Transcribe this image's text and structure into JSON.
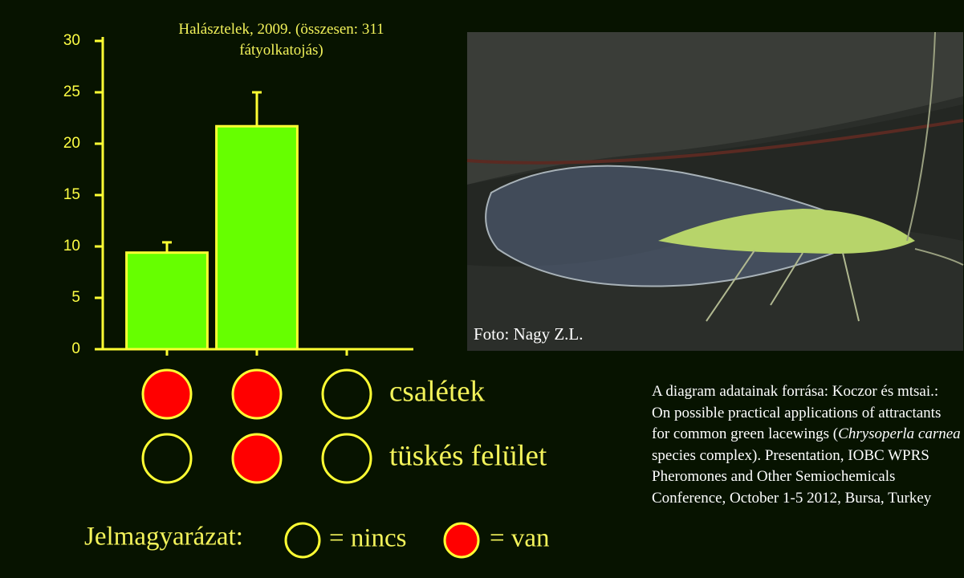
{
  "chart_data": {
    "type": "bar",
    "title": "Halásztelek, 2009. (összesen: 311 fátyolkatojás)",
    "categories": [
      null,
      null,
      null
    ],
    "values": [
      9.4,
      21.7,
      0
    ],
    "errors": [
      1.0,
      3.3,
      null
    ],
    "color": "#66ff00",
    "edge_color": "#ffff33",
    "ylim": [
      0,
      30
    ],
    "yticks": [
      0,
      5,
      10,
      15,
      20,
      25,
      30
    ]
  },
  "treatments": [
    {
      "label": "csalétek",
      "present": [
        true,
        true,
        false
      ]
    },
    {
      "label": "tüskés felület",
      "present": [
        false,
        true,
        false
      ]
    }
  ],
  "legend": {
    "title": "Jelmagyarázat:",
    "absent": "= nincs",
    "present": "= van"
  },
  "photo_caption": "Foto: Nagy Z.L.",
  "source": {
    "before": "A diagram adatainak forrása: Koczor és mtsai.: On possible practical applications of attractants for common green lacewings (",
    "italic": "Chrysoperla carnea",
    "after": " species complex). Presentation, IOBC WPRS Pheromones and Other Semiochemicals Conference, October 1-5 2012, Bursa, Turkey"
  }
}
